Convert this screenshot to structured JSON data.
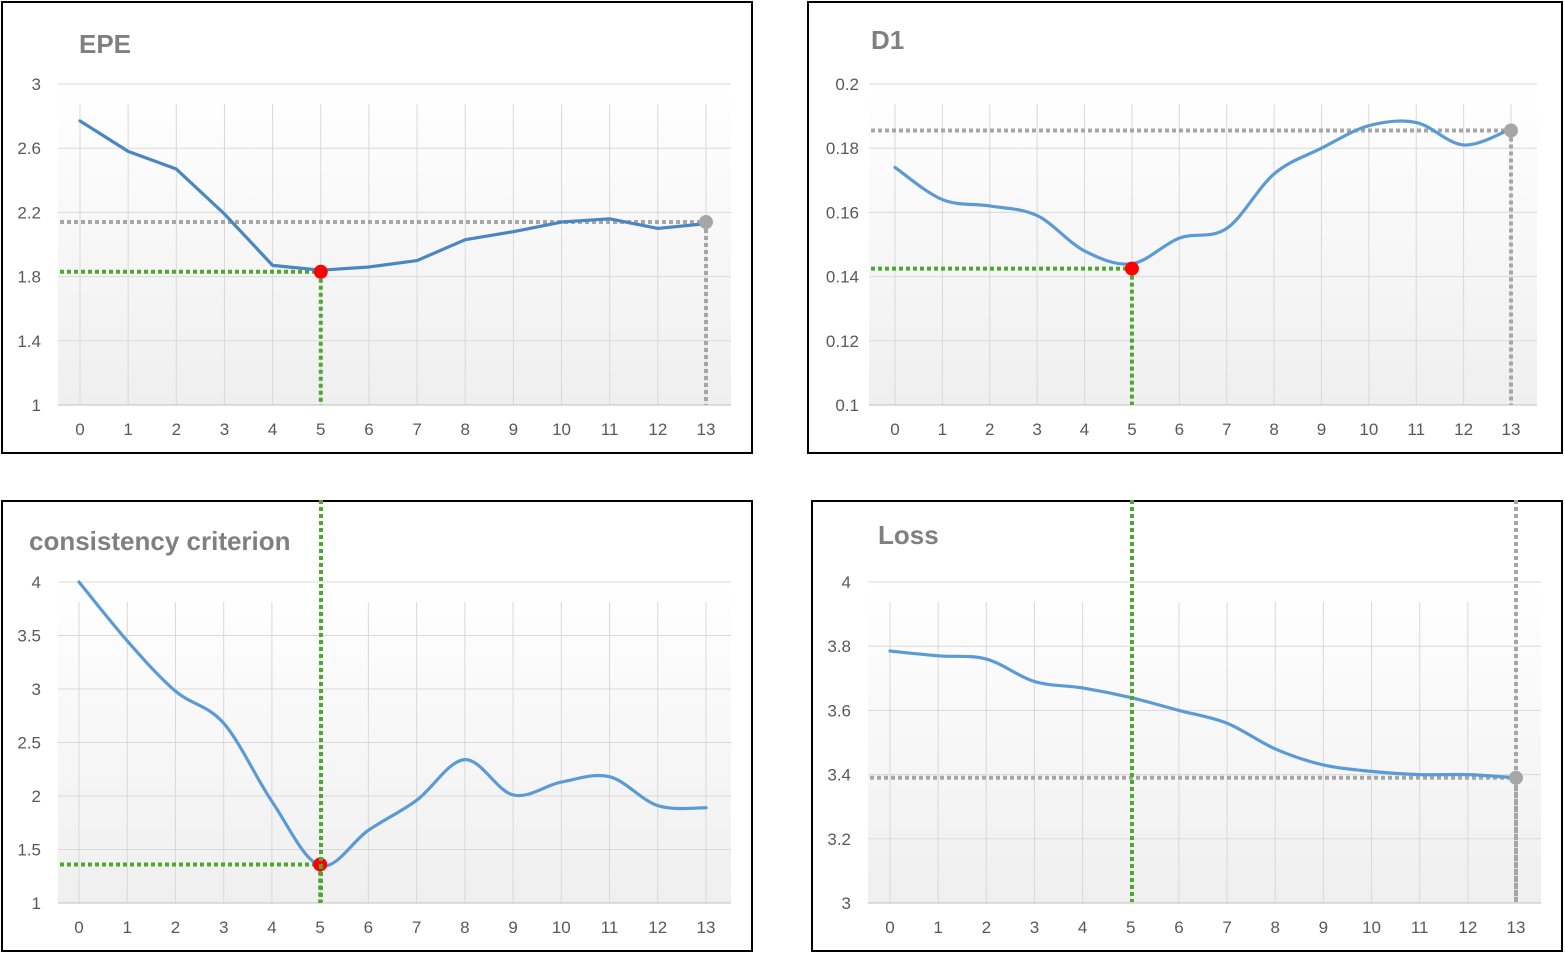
{
  "chart_data": [
    {
      "type": "line",
      "title": "EPE",
      "xlabel": "",
      "ylabel": "",
      "categories": [
        "0",
        "1",
        "2",
        "3",
        "4",
        "5",
        "6",
        "7",
        "8",
        "9",
        "10",
        "11",
        "12",
        "13"
      ],
      "y_ticks": [
        "1",
        "1.4",
        "1.8",
        "2.2",
        "2.6",
        "3"
      ],
      "ylim": [
        1,
        3
      ],
      "smooth": false,
      "series": [
        {
          "values": [
            2.77,
            2.58,
            2.47,
            2.19,
            1.87,
            1.84,
            1.86,
            1.9,
            2.03,
            2.08,
            2.14,
            2.16,
            2.1,
            2.13
          ]
        }
      ],
      "markers": [
        {
          "index": 5,
          "value": 1.83,
          "color": "#ff0000",
          "guide": "#4ea72e"
        },
        {
          "index": 13,
          "value": 2.14,
          "color": "#a6a6a6",
          "guide": "#a6a6a6"
        }
      ],
      "grid": true,
      "line_color": "#4a86c0"
    },
    {
      "type": "line",
      "title": "D1",
      "xlabel": "",
      "ylabel": "",
      "categories": [
        "0",
        "1",
        "2",
        "3",
        "4",
        "5",
        "6",
        "7",
        "8",
        "9",
        "10",
        "11",
        "12",
        "13"
      ],
      "y_ticks": [
        "0.1",
        "0.12",
        "0.14",
        "0.16",
        "0.18",
        "0.2"
      ],
      "ylim": [
        0.1,
        0.2
      ],
      "smooth": true,
      "series": [
        {
          "values": [
            0.174,
            0.164,
            0.162,
            0.159,
            0.148,
            0.144,
            0.152,
            0.155,
            0.172,
            0.18,
            0.187,
            0.188,
            0.181,
            0.186
          ]
        }
      ],
      "markers": [
        {
          "index": 5,
          "value": 0.1425,
          "color": "#ff0000",
          "guide": "#4ea72e"
        },
        {
          "index": 13,
          "value": 0.1855,
          "color": "#a6a6a6",
          "guide": "#a6a6a6"
        }
      ],
      "grid": true,
      "line_color": "#5b9bd5"
    },
    {
      "type": "line",
      "title": "consistency criterion",
      "xlabel": "",
      "ylabel": "",
      "categories": [
        "0",
        "1",
        "2",
        "3",
        "4",
        "5",
        "6",
        "7",
        "8",
        "9",
        "10",
        "11",
        "12",
        "13"
      ],
      "y_ticks": [
        "1",
        "1.5",
        "2",
        "2.5",
        "3",
        "3.5",
        "4"
      ],
      "ylim": [
        1,
        4
      ],
      "smooth": true,
      "series": [
        {
          "values": [
            4.0,
            3.45,
            2.98,
            2.68,
            1.95,
            1.35,
            1.68,
            1.96,
            2.34,
            2.01,
            2.13,
            2.18,
            1.91,
            1.89
          ]
        }
      ],
      "markers": [
        {
          "index": 5,
          "value": 1.36,
          "color": "#ff0000",
          "guide": "#4ea72e"
        }
      ],
      "grid": true,
      "line_color": "#5b9bd5"
    },
    {
      "type": "line",
      "title": "Loss",
      "xlabel": "",
      "ylabel": "",
      "categories": [
        "0",
        "1",
        "2",
        "3",
        "4",
        "5",
        "6",
        "7",
        "8",
        "9",
        "10",
        "11",
        "12",
        "13"
      ],
      "y_ticks": [
        "3",
        "3.2",
        "3.4",
        "3.6",
        "3.8",
        "4"
      ],
      "ylim": [
        3,
        4.05
      ],
      "smooth": true,
      "series": [
        {
          "values": [
            3.785,
            3.77,
            3.76,
            3.69,
            3.67,
            3.64,
            3.6,
            3.56,
            3.48,
            3.43,
            3.41,
            3.4,
            3.4,
            3.39
          ]
        }
      ],
      "markers": [
        {
          "index": 13,
          "value": 3.39,
          "color": "#a6a6a6",
          "guide": "#a6a6a6"
        }
      ],
      "grid": true,
      "line_color": "#5b9bd5"
    }
  ],
  "overlay_guides": [
    {
      "index": 5,
      "color": "#4ea72e",
      "note_chart_index": 0
    },
    {
      "index": 5,
      "color": "#4ea72e",
      "note_chart_index": 1
    },
    {
      "index": 5,
      "color": "#4ea72e",
      "note_chart_index": 3
    },
    {
      "index": 13,
      "color": "#a6a6a6",
      "note_chart_index": 3
    }
  ]
}
